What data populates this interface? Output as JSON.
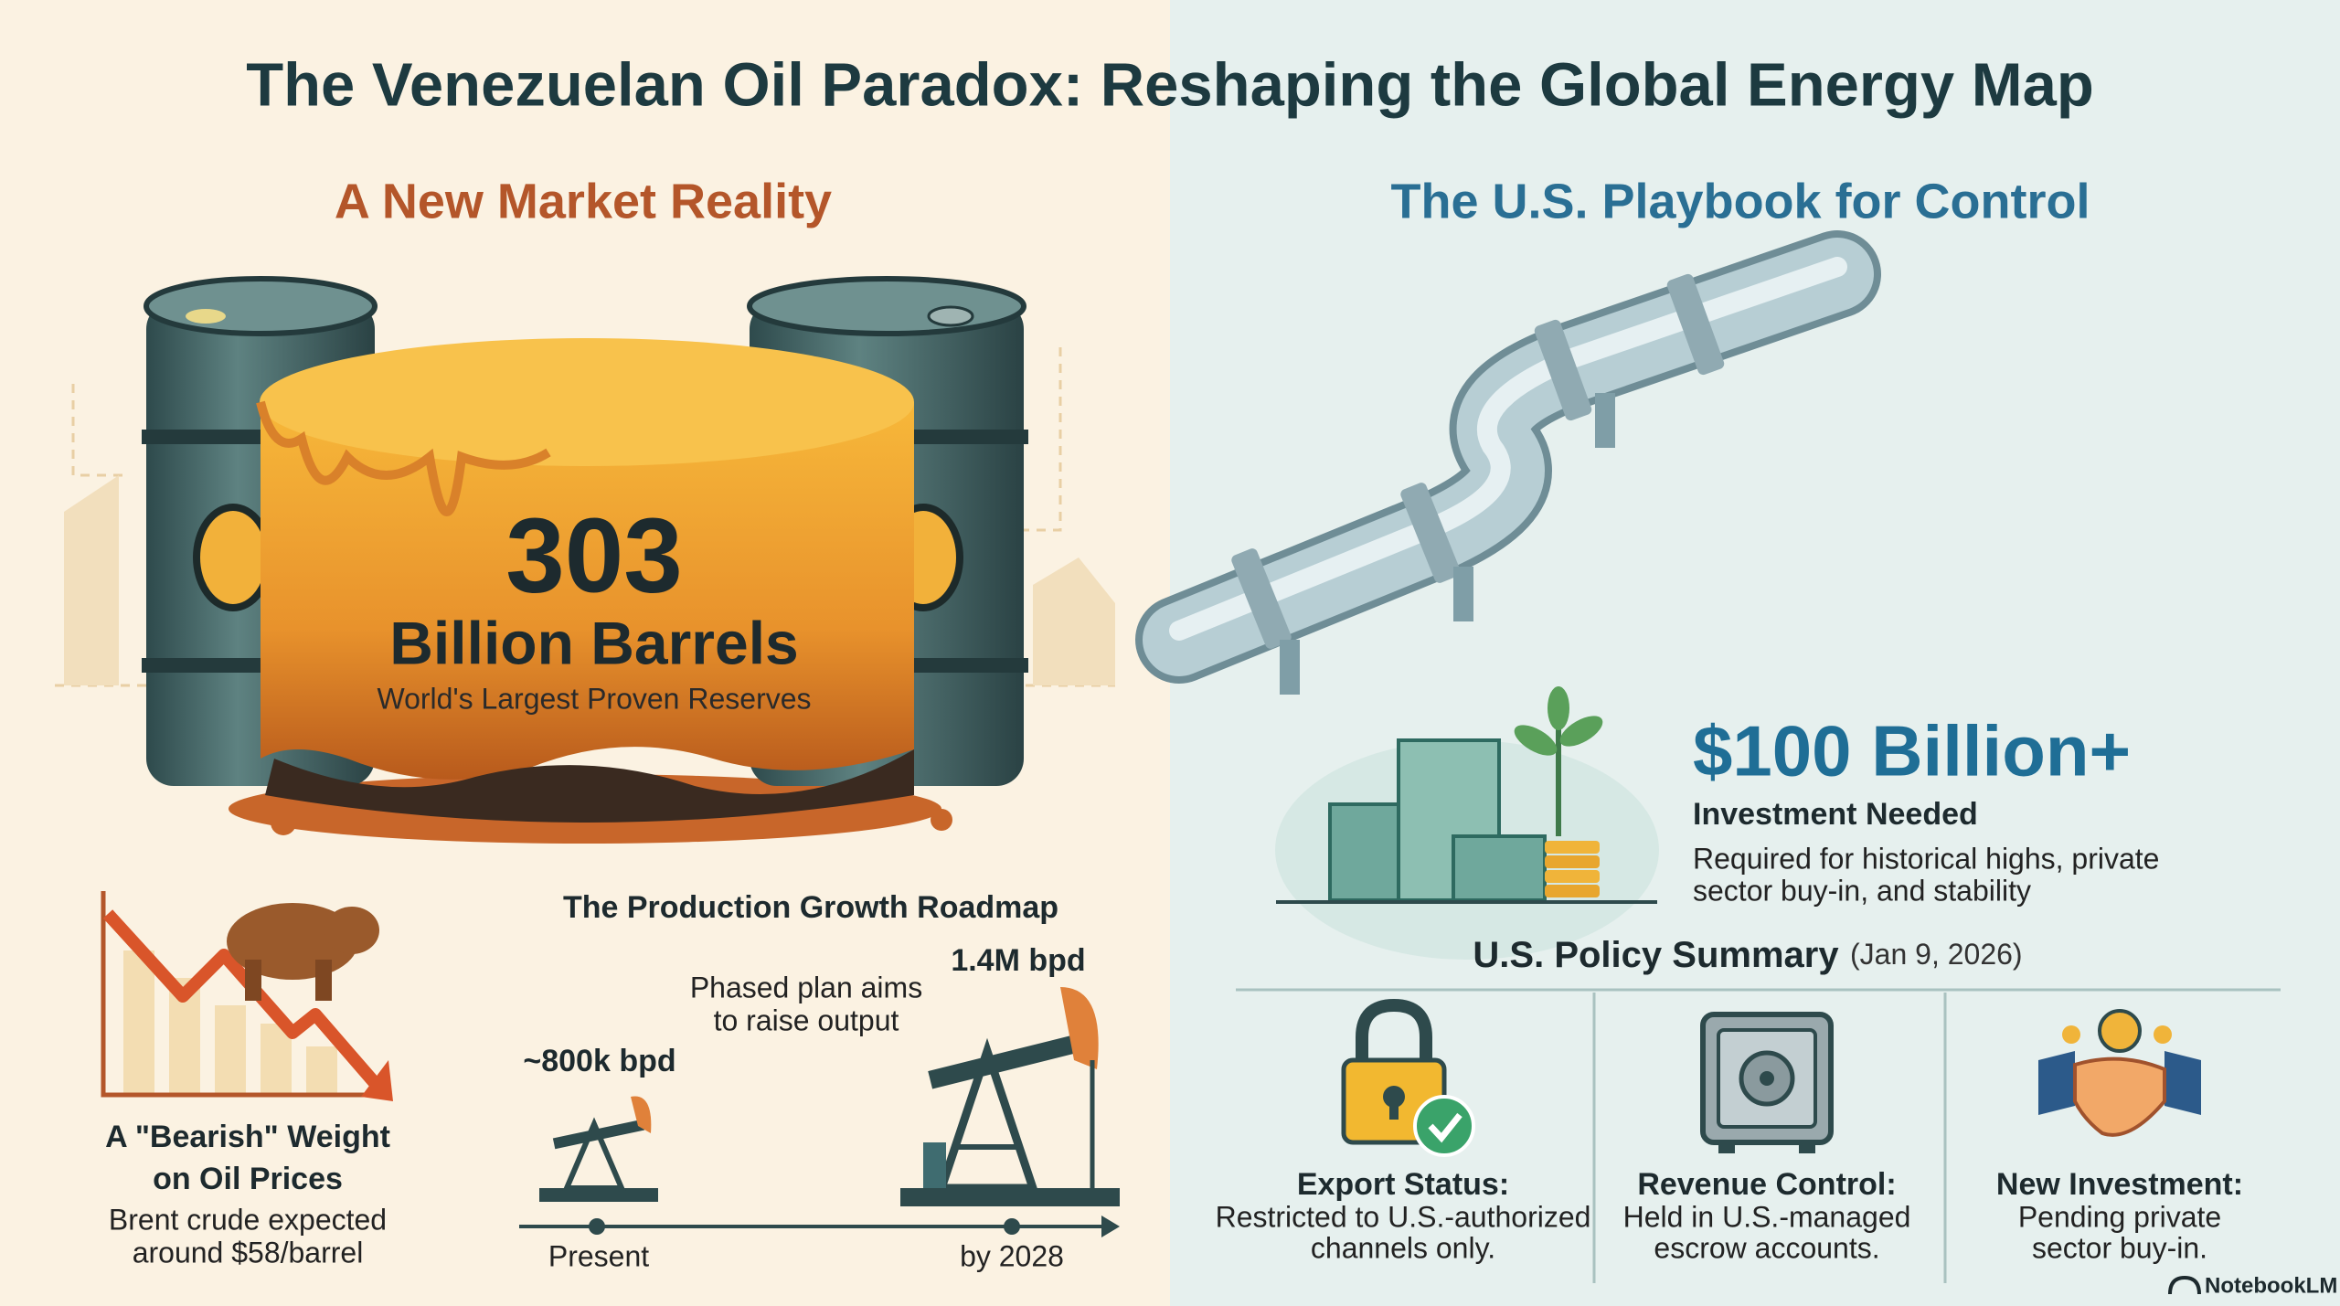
{
  "title": "The Venezuelan Oil Paradox: Reshaping the Global Energy Map",
  "left": {
    "heading": "A New Market Reality",
    "reserves": {
      "value": "303",
      "unit": "Billion Barrels",
      "caption": "World's Largest Proven Reserves"
    },
    "bearish": {
      "title_lines": [
        "A \"Bearish\" Weight",
        "on Oil Prices"
      ],
      "text_lines": [
        "Brent crude expected",
        "around $58/barrel"
      ]
    },
    "roadmap": {
      "title": "The Production Growth Roadmap",
      "start_label": "~800k bpd",
      "end_label": "1.4M bpd",
      "note_lines": [
        "Phased plan aims",
        "to raise output"
      ],
      "axis": [
        "Present",
        "by 2028"
      ]
    }
  },
  "right": {
    "heading": "The U.S. Playbook for Control",
    "investment": {
      "amount": "$100 Billion+",
      "label": "Investment Needed",
      "text_lines": [
        "Required for historical highs, private",
        "sector buy-in, and stability"
      ]
    },
    "policy": {
      "title": "U.S. Policy Summary",
      "date": "(Jan 9, 2026)",
      "items": [
        {
          "label": "Export Status:",
          "text_lines": [
            "Restricted to U.S.-authorized",
            "channels only."
          ]
        },
        {
          "label": "Revenue Control:",
          "text_lines": [
            "Held in U.S.-managed",
            "escrow accounts."
          ]
        },
        {
          "label": "New Investment:",
          "text_lines": [
            "Pending private",
            "sector buy-in."
          ]
        }
      ]
    }
  },
  "footer": {
    "brand": "NotebookLM"
  }
}
